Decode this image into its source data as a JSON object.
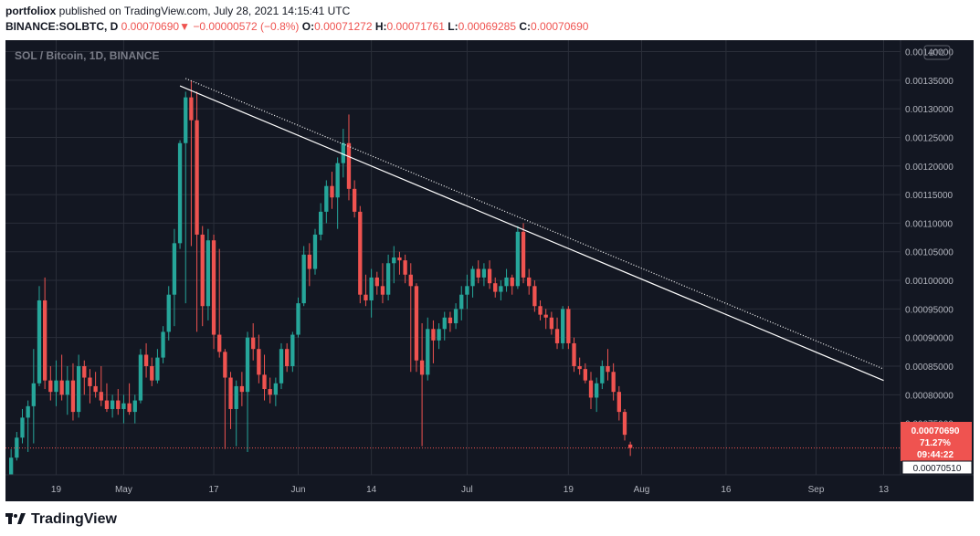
{
  "header": {
    "publisher": "portfoliox",
    "published_text": " published on TradingView.com, July 28, 2021 14:15:41 UTC",
    "symbol": "BINANCE:SOLBTC, D",
    "last": "0.00070690",
    "change_arrow": "▼",
    "change": "−0.00000572 (−0.8%)",
    "o_label": "O:",
    "o_value": "0.00071272",
    "h_label": "H:",
    "h_value": "0.00071761",
    "l_label": "L:",
    "l_value": "0.00069285",
    "c_label": "C:",
    "c_value": "0.00070690"
  },
  "chart": {
    "legend": "SOL / Bitcoin, 1D, BINANCE",
    "currency_badge": "BTC",
    "price_ticks": [
      "0.00140000",
      "0.00135000",
      "0.00130000",
      "0.00125000",
      "0.00120000",
      "0.00115000",
      "0.00110000",
      "0.00105000",
      "0.00100000",
      "0.00095000",
      "0.00090000",
      "0.00085000",
      "0.00080000",
      "0.00075000"
    ],
    "date_ticks": [
      "19",
      "May",
      "17",
      "Jun",
      "14",
      "Jul",
      "19",
      "Aug",
      "16",
      "Sep",
      "13"
    ],
    "last_price_label": {
      "price": "0.00070690",
      "percent": "71.27%",
      "countdown": "09:44:22"
    },
    "low_label": "0.00070510",
    "colors": {
      "background": "#131722",
      "up": "#26a69a",
      "down": "#ef5350",
      "grid": "#2a2e39",
      "axis_text": "#b2b5be",
      "trendline": "#ffffff"
    }
  },
  "footer": {
    "brand": "TradingView"
  },
  "chart_data": {
    "type": "candlestick",
    "series": "SOL / Bitcoin",
    "timeframe": "1D",
    "y_range": [
      0.00066,
      0.00142
    ],
    "x_range_dates": [
      "2021-04-10",
      "2021-09-16"
    ],
    "candles": [
      {
        "d": "2021-04-11",
        "o": 0.00065,
        "h": 0.000705,
        "l": 0.00064,
        "c": 0.00069
      },
      {
        "d": "2021-04-12",
        "o": 0.00069,
        "h": 0.000735,
        "l": 0.000685,
        "c": 0.000725
      },
      {
        "d": "2021-04-13",
        "o": 0.000725,
        "h": 0.000775,
        "l": 0.000715,
        "c": 0.00076
      },
      {
        "d": "2021-04-14",
        "o": 0.00076,
        "h": 0.00079,
        "l": 0.0007,
        "c": 0.00078
      },
      {
        "d": "2021-04-15",
        "o": 0.00078,
        "h": 0.00088,
        "l": 0.000715,
        "c": 0.00082
      },
      {
        "d": "2021-04-16",
        "o": 0.00082,
        "h": 0.00099,
        "l": 0.000815,
        "c": 0.000965
      },
      {
        "d": "2021-04-17",
        "o": 0.000965,
        "h": 0.001005,
        "l": 0.00081,
        "c": 0.000825
      },
      {
        "d": "2021-04-18",
        "o": 0.000825,
        "h": 0.00085,
        "l": 0.00079,
        "c": 0.000805
      },
      {
        "d": "2021-04-19",
        "o": 0.000805,
        "h": 0.00086,
        "l": 0.00078,
        "c": 0.000825
      },
      {
        "d": "2021-04-20",
        "o": 0.000825,
        "h": 0.00087,
        "l": 0.00079,
        "c": 0.0008
      },
      {
        "d": "2021-04-21",
        "o": 0.0008,
        "h": 0.00085,
        "l": 0.000765,
        "c": 0.000825
      },
      {
        "d": "2021-04-22",
        "o": 0.000825,
        "h": 0.000855,
        "l": 0.000755,
        "c": 0.00077
      },
      {
        "d": "2021-04-23",
        "o": 0.00077,
        "h": 0.00087,
        "l": 0.00076,
        "c": 0.00085
      },
      {
        "d": "2021-04-24",
        "o": 0.00085,
        "h": 0.00086,
        "l": 0.0008,
        "c": 0.00083
      },
      {
        "d": "2021-04-25",
        "o": 0.00083,
        "h": 0.000845,
        "l": 0.000785,
        "c": 0.000815
      },
      {
        "d": "2021-04-26",
        "o": 0.000815,
        "h": 0.00084,
        "l": 0.000795,
        "c": 0.000805
      },
      {
        "d": "2021-04-27",
        "o": 0.000805,
        "h": 0.00085,
        "l": 0.00078,
        "c": 0.00079
      },
      {
        "d": "2021-04-28",
        "o": 0.00079,
        "h": 0.00082,
        "l": 0.00077,
        "c": 0.000775
      },
      {
        "d": "2021-04-29",
        "o": 0.000775,
        "h": 0.0008,
        "l": 0.00076,
        "c": 0.00079
      },
      {
        "d": "2021-04-30",
        "o": 0.00079,
        "h": 0.00081,
        "l": 0.000765,
        "c": 0.000775
      },
      {
        "d": "2021-05-01",
        "o": 0.000775,
        "h": 0.0008,
        "l": 0.00075,
        "c": 0.000785
      },
      {
        "d": "2021-05-02",
        "o": 0.000785,
        "h": 0.00082,
        "l": 0.000765,
        "c": 0.00077
      },
      {
        "d": "2021-05-03",
        "o": 0.00077,
        "h": 0.0008,
        "l": 0.00075,
        "c": 0.00079
      },
      {
        "d": "2021-05-04",
        "o": 0.00079,
        "h": 0.00088,
        "l": 0.000785,
        "c": 0.00087
      },
      {
        "d": "2021-05-05",
        "o": 0.00087,
        "h": 0.00089,
        "l": 0.00083,
        "c": 0.00085
      },
      {
        "d": "2021-05-06",
        "o": 0.00085,
        "h": 0.000865,
        "l": 0.000815,
        "c": 0.000825
      },
      {
        "d": "2021-05-07",
        "o": 0.000825,
        "h": 0.00088,
        "l": 0.00082,
        "c": 0.000865
      },
      {
        "d": "2021-05-08",
        "o": 0.000865,
        "h": 0.00092,
        "l": 0.000855,
        "c": 0.00091
      },
      {
        "d": "2021-05-09",
        "o": 0.00091,
        "h": 0.00099,
        "l": 0.000895,
        "c": 0.000975
      },
      {
        "d": "2021-05-10",
        "o": 0.000975,
        "h": 0.00109,
        "l": 0.00092,
        "c": 0.001065
      },
      {
        "d": "2021-05-11",
        "o": 0.001065,
        "h": 0.001245,
        "l": 0.001055,
        "c": 0.00124
      },
      {
        "d": "2021-05-12",
        "o": 0.00124,
        "h": 0.00133,
        "l": 0.00096,
        "c": 0.00132
      },
      {
        "d": "2021-05-13",
        "o": 0.00132,
        "h": 0.00135,
        "l": 0.00106,
        "c": 0.00128
      },
      {
        "d": "2021-05-14",
        "o": 0.00128,
        "h": 0.00133,
        "l": 0.00091,
        "c": 0.00108
      },
      {
        "d": "2021-05-15",
        "o": 0.00108,
        "h": 0.001095,
        "l": 0.00092,
        "c": 0.000955
      },
      {
        "d": "2021-05-16",
        "o": 0.000955,
        "h": 0.00109,
        "l": 0.00093,
        "c": 0.00107
      },
      {
        "d": "2021-05-17",
        "o": 0.00107,
        "h": 0.00108,
        "l": 0.00088,
        "c": 0.000905
      },
      {
        "d": "2021-05-18",
        "o": 0.000905,
        "h": 0.001055,
        "l": 0.000865,
        "c": 0.000875
      },
      {
        "d": "2021-05-19",
        "o": 0.000875,
        "h": 0.00088,
        "l": 0.000705,
        "c": 0.00083
      },
      {
        "d": "2021-05-20",
        "o": 0.00083,
        "h": 0.00084,
        "l": 0.00074,
        "c": 0.000775
      },
      {
        "d": "2021-05-21",
        "o": 0.000775,
        "h": 0.000825,
        "l": 0.00071,
        "c": 0.000815
      },
      {
        "d": "2021-05-22",
        "o": 0.000815,
        "h": 0.00084,
        "l": 0.00078,
        "c": 0.000805
      },
      {
        "d": "2021-05-23",
        "o": 0.000805,
        "h": 0.00091,
        "l": 0.0007,
        "c": 0.0009
      },
      {
        "d": "2021-05-24",
        "o": 0.0009,
        "h": 0.000925,
        "l": 0.00086,
        "c": 0.00088
      },
      {
        "d": "2021-05-25",
        "o": 0.00088,
        "h": 0.000905,
        "l": 0.00082,
        "c": 0.000835
      },
      {
        "d": "2021-05-26",
        "o": 0.000835,
        "h": 0.00087,
        "l": 0.00079,
        "c": 0.00081
      },
      {
        "d": "2021-05-27",
        "o": 0.00081,
        "h": 0.00083,
        "l": 0.000785,
        "c": 0.0008
      },
      {
        "d": "2021-05-28",
        "o": 0.0008,
        "h": 0.00083,
        "l": 0.00078,
        "c": 0.00082
      },
      {
        "d": "2021-05-29",
        "o": 0.00082,
        "h": 0.00089,
        "l": 0.00081,
        "c": 0.00088
      },
      {
        "d": "2021-05-30",
        "o": 0.00088,
        "h": 0.00089,
        "l": 0.00084,
        "c": 0.00085
      },
      {
        "d": "2021-05-31",
        "o": 0.00085,
        "h": 0.00091,
        "l": 0.00084,
        "c": 0.000905
      },
      {
        "d": "2021-06-01",
        "o": 0.000905,
        "h": 0.00097,
        "l": 0.0009,
        "c": 0.00096
      },
      {
        "d": "2021-06-02",
        "o": 0.00096,
        "h": 0.00106,
        "l": 0.000955,
        "c": 0.001045
      },
      {
        "d": "2021-06-03",
        "o": 0.001045,
        "h": 0.001065,
        "l": 0.00099,
        "c": 0.00102
      },
      {
        "d": "2021-06-04",
        "o": 0.00102,
        "h": 0.00109,
        "l": 0.00101,
        "c": 0.00108
      },
      {
        "d": "2021-06-05",
        "o": 0.00108,
        "h": 0.001135,
        "l": 0.00107,
        "c": 0.00112
      },
      {
        "d": "2021-06-06",
        "o": 0.00112,
        "h": 0.001175,
        "l": 0.0011,
        "c": 0.001165
      },
      {
        "d": "2021-06-07",
        "o": 0.001165,
        "h": 0.00119,
        "l": 0.001125,
        "c": 0.001145
      },
      {
        "d": "2021-06-08",
        "o": 0.001145,
        "h": 0.001215,
        "l": 0.00109,
        "c": 0.001205
      },
      {
        "d": "2021-06-09",
        "o": 0.001205,
        "h": 0.001265,
        "l": 0.00118,
        "c": 0.00124
      },
      {
        "d": "2021-06-10",
        "o": 0.00124,
        "h": 0.00129,
        "l": 0.00114,
        "c": 0.00116
      },
      {
        "d": "2021-06-11",
        "o": 0.00116,
        "h": 0.001175,
        "l": 0.00111,
        "c": 0.00112
      },
      {
        "d": "2021-06-12",
        "o": 0.00112,
        "h": 0.00113,
        "l": 0.00096,
        "c": 0.000975
      },
      {
        "d": "2021-06-13",
        "o": 0.000975,
        "h": 0.00101,
        "l": 0.000955,
        "c": 0.000965
      },
      {
        "d": "2021-06-14",
        "o": 0.000965,
        "h": 0.00102,
        "l": 0.000935,
        "c": 0.001005
      },
      {
        "d": "2021-06-15",
        "o": 0.001005,
        "h": 0.001015,
        "l": 0.000975,
        "c": 0.00099
      },
      {
        "d": "2021-06-16",
        "o": 0.00099,
        "h": 0.00103,
        "l": 0.00096,
        "c": 0.000975
      },
      {
        "d": "2021-06-17",
        "o": 0.000975,
        "h": 0.001045,
        "l": 0.000965,
        "c": 0.00103
      },
      {
        "d": "2021-06-18",
        "o": 0.00103,
        "h": 0.00106,
        "l": 0.000995,
        "c": 0.00104
      },
      {
        "d": "2021-06-19",
        "o": 0.00104,
        "h": 0.00105,
        "l": 0.00101,
        "c": 0.001035
      },
      {
        "d": "2021-06-20",
        "o": 0.001035,
        "h": 0.001045,
        "l": 0.000995,
        "c": 0.00101
      },
      {
        "d": "2021-06-21",
        "o": 0.00101,
        "h": 0.00103,
        "l": 0.00084,
        "c": 0.00099
      },
      {
        "d": "2021-06-22",
        "o": 0.00099,
        "h": 0.000995,
        "l": 0.00084,
        "c": 0.00086
      },
      {
        "d": "2021-06-23",
        "o": 0.00086,
        "h": 0.000925,
        "l": 0.00071,
        "c": 0.000835
      },
      {
        "d": "2021-06-24",
        "o": 0.000835,
        "h": 0.000935,
        "l": 0.000825,
        "c": 0.000915
      },
      {
        "d": "2021-06-25",
        "o": 0.000915,
        "h": 0.00093,
        "l": 0.000855,
        "c": 0.000895
      },
      {
        "d": "2021-06-26",
        "o": 0.000895,
        "h": 0.000925,
        "l": 0.00088,
        "c": 0.000915
      },
      {
        "d": "2021-06-27",
        "o": 0.000915,
        "h": 0.000945,
        "l": 0.000895,
        "c": 0.000935
      },
      {
        "d": "2021-06-28",
        "o": 0.000935,
        "h": 0.000945,
        "l": 0.00091,
        "c": 0.000925
      },
      {
        "d": "2021-06-29",
        "o": 0.000925,
        "h": 0.00096,
        "l": 0.000915,
        "c": 0.00095
      },
      {
        "d": "2021-06-30",
        "o": 0.00095,
        "h": 0.00099,
        "l": 0.00093,
        "c": 0.000975
      },
      {
        "d": "2021-07-01",
        "o": 0.000975,
        "h": 0.00101,
        "l": 0.00095,
        "c": 0.00099
      },
      {
        "d": "2021-07-02",
        "o": 0.00099,
        "h": 0.001025,
        "l": 0.00097,
        "c": 0.00102
      },
      {
        "d": "2021-07-03",
        "o": 0.00102,
        "h": 0.001035,
        "l": 0.000995,
        "c": 0.001005
      },
      {
        "d": "2021-07-04",
        "o": 0.001005,
        "h": 0.00103,
        "l": 0.00099,
        "c": 0.00102
      },
      {
        "d": "2021-07-05",
        "o": 0.00102,
        "h": 0.001035,
        "l": 0.000985,
        "c": 0.000995
      },
      {
        "d": "2021-07-06",
        "o": 0.000995,
        "h": 0.001005,
        "l": 0.00097,
        "c": 0.00098
      },
      {
        "d": "2021-07-07",
        "o": 0.00098,
        "h": 0.001,
        "l": 0.000965,
        "c": 0.00099
      },
      {
        "d": "2021-07-08",
        "o": 0.00099,
        "h": 0.00102,
        "l": 0.00098,
        "c": 0.001005
      },
      {
        "d": "2021-07-09",
        "o": 0.001005,
        "h": 0.00101,
        "l": 0.000975,
        "c": 0.00099
      },
      {
        "d": "2021-07-10",
        "o": 0.00099,
        "h": 0.001095,
        "l": 0.000985,
        "c": 0.001085
      },
      {
        "d": "2021-07-11",
        "o": 0.001085,
        "h": 0.0011,
        "l": 0.000995,
        "c": 0.001005
      },
      {
        "d": "2021-07-12",
        "o": 0.001005,
        "h": 0.00102,
        "l": 0.000975,
        "c": 0.00099
      },
      {
        "d": "2021-07-13",
        "o": 0.00099,
        "h": 0.001,
        "l": 0.000945,
        "c": 0.000955
      },
      {
        "d": "2021-07-14",
        "o": 0.000955,
        "h": 0.000965,
        "l": 0.00093,
        "c": 0.00094
      },
      {
        "d": "2021-07-15",
        "o": 0.00094,
        "h": 0.00095,
        "l": 0.000915,
        "c": 0.000935
      },
      {
        "d": "2021-07-16",
        "o": 0.000935,
        "h": 0.000945,
        "l": 0.000905,
        "c": 0.000915
      },
      {
        "d": "2021-07-17",
        "o": 0.000915,
        "h": 0.000935,
        "l": 0.00088,
        "c": 0.00089
      },
      {
        "d": "2021-07-18",
        "o": 0.00089,
        "h": 0.000955,
        "l": 0.00088,
        "c": 0.00095
      },
      {
        "d": "2021-07-19",
        "o": 0.00095,
        "h": 0.000955,
        "l": 0.00088,
        "c": 0.00089
      },
      {
        "d": "2021-07-20",
        "o": 0.00089,
        "h": 0.0009,
        "l": 0.00084,
        "c": 0.00085
      },
      {
        "d": "2021-07-21",
        "o": 0.00085,
        "h": 0.000865,
        "l": 0.000835,
        "c": 0.000845
      },
      {
        "d": "2021-07-22",
        "o": 0.000845,
        "h": 0.000855,
        "l": 0.00082,
        "c": 0.000825
      },
      {
        "d": "2021-07-23",
        "o": 0.000825,
        "h": 0.00084,
        "l": 0.000775,
        "c": 0.000795
      },
      {
        "d": "2021-07-24",
        "o": 0.000795,
        "h": 0.00083,
        "l": 0.00077,
        "c": 0.00082
      },
      {
        "d": "2021-07-25",
        "o": 0.00082,
        "h": 0.00086,
        "l": 0.00081,
        "c": 0.00085
      },
      {
        "d": "2021-07-26",
        "o": 0.00085,
        "h": 0.00088,
        "l": 0.000825,
        "c": 0.00084
      },
      {
        "d": "2021-07-27",
        "o": 0.00084,
        "h": 0.000855,
        "l": 0.00079,
        "c": 0.000805
      },
      {
        "d": "2021-07-28",
        "o": 0.000805,
        "h": 0.000815,
        "l": 0.000755,
        "c": 0.00077
      },
      {
        "d": "2021-07-29",
        "o": 0.00077,
        "h": 0.000775,
        "l": 0.00072,
        "c": 0.00073
      },
      {
        "d": "2021-07-30",
        "o": 0.000713,
        "h": 0.000718,
        "l": 0.000693,
        "c": 0.000707
      }
    ],
    "trendlines": [
      {
        "style": "solid",
        "from": {
          "d": "2021-05-11",
          "p": 0.00134
        },
        "to": {
          "d": "2021-09-13",
          "p": 0.000825
        }
      },
      {
        "style": "dotted",
        "from": {
          "d": "2021-05-12",
          "p": 0.001353
        },
        "to": {
          "d": "2021-09-13",
          "p": 0.000845
        }
      }
    ],
    "horizontal_line": {
      "price": 0.0007069,
      "style": "dotted",
      "color": "#ef5350"
    }
  }
}
